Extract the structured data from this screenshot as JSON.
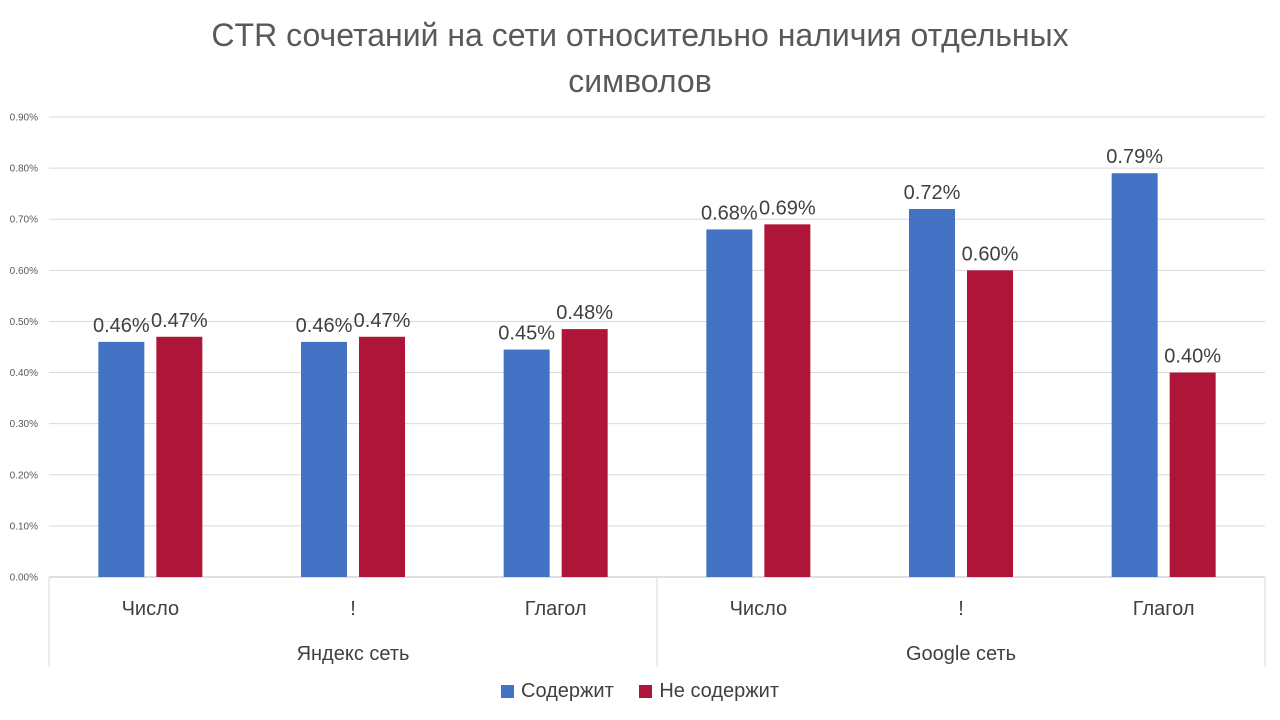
{
  "chart_data": {
    "type": "bar",
    "title_lines": [
      "CTR сочетаний на сети относительно наличия отдельных",
      "символов"
    ],
    "groups": [
      {
        "label": "Яндекс сеть",
        "categories": [
          "Число",
          "!",
          "Глагол"
        ]
      },
      {
        "label": "Google сеть",
        "categories": [
          "Число",
          "!",
          "Глагол"
        ]
      }
    ],
    "series": [
      {
        "name": "Содержит",
        "color": "#4472C4",
        "values": [
          0.46,
          0.46,
          0.445,
          0.68,
          0.72,
          0.79
        ],
        "data_labels": [
          "0.46%",
          "0.46%",
          "0.45%",
          "0.68%",
          "0.72%",
          "0.79%"
        ]
      },
      {
        "name": "Не содержит",
        "color": "#AE1538",
        "values": [
          0.47,
          0.47,
          0.485,
          0.69,
          0.6,
          0.4
        ],
        "data_labels": [
          "0.47%",
          "0.47%",
          "0.48%",
          "0.69%",
          "0.60%",
          "0.40%"
        ]
      }
    ],
    "ylim": [
      0,
      0.9
    ],
    "yticks": [
      "0.00%",
      "0.10%",
      "0.20%",
      "0.30%",
      "0.40%",
      "0.50%",
      "0.60%",
      "0.70%",
      "0.80%",
      "0.90%"
    ],
    "grid": true,
    "legend_position": "bottom"
  }
}
